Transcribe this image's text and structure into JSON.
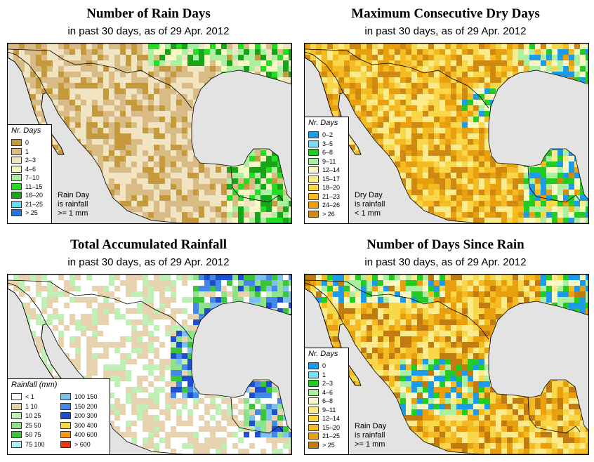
{
  "panels": [
    {
      "title": "Number of Rain Days",
      "subtitle": "in past 30 days, as of  29 Apr. 2012",
      "scheme": "raindays",
      "legend": {
        "title": "Nr. Days",
        "items": [
          {
            "label": "0",
            "color": "#c49a3c"
          },
          {
            "label": "1",
            "color": "#d9bb85"
          },
          {
            "label": "2–3",
            "color": "#f1e4c2"
          },
          {
            "label": "4–6",
            "color": "#f8f8c4"
          },
          {
            "label": "7–10",
            "color": "#aaf0a0"
          },
          {
            "label": "11–15",
            "color": "#22dd22"
          },
          {
            "label": "16–20",
            "color": "#19a519"
          },
          {
            "label": "21–25",
            "color": "#66ddf0"
          },
          {
            "label": "> 25",
            "color": "#2277dd"
          }
        ]
      },
      "note": [
        "Rain Day",
        "is rainfall",
        ">= 1 mm"
      ]
    },
    {
      "title": "Maximum Consecutive Dry Days",
      "subtitle": "in past 30 days, as of  29 Apr. 2012",
      "scheme": "drydays",
      "legend": {
        "title": "Nr. Days",
        "items": [
          {
            "label": "0–2",
            "color": "#1e9be6"
          },
          {
            "label": "3–5",
            "color": "#7adcf5"
          },
          {
            "label": "6–8",
            "color": "#22cc22"
          },
          {
            "label": "9–11",
            "color": "#aaf0a0"
          },
          {
            "label": "12–14",
            "color": "#f8f8c4"
          },
          {
            "label": "15–17",
            "color": "#fbeb8c"
          },
          {
            "label": "18–20",
            "color": "#f8d84a"
          },
          {
            "label": "21–23",
            "color": "#f5bb22"
          },
          {
            "label": "24–26",
            "color": "#e8a00e"
          },
          {
            "label": "> 26",
            "color": "#d08a12"
          }
        ]
      },
      "note": [
        "Dry Day",
        "is rainfall",
        "< 1 mm"
      ]
    },
    {
      "title": "Total Accumulated Rainfall",
      "subtitle": "in past 30 days, as of  29 Apr. 2012",
      "scheme": "rainfall",
      "legend": {
        "title": "Rainfall (mm)",
        "left": [
          {
            "label": "< 1",
            "color": "#ffffff"
          },
          {
            "label": "1    10",
            "color": "#e8d3b0"
          },
          {
            "label": "10    25",
            "color": "#bff0b5"
          },
          {
            "label": "25    50",
            "color": "#8ee28a"
          },
          {
            "label": "50    75",
            "color": "#3cc43c"
          },
          {
            "label": "75    100",
            "color": "#aaf0f5"
          }
        ],
        "right": [
          {
            "label": "100    150",
            "color": "#7cc0f0"
          },
          {
            "label": "150    200",
            "color": "#4488e8"
          },
          {
            "label": "200    300",
            "color": "#1f4fcf"
          },
          {
            "label": "300    400",
            "color": "#f8d84a"
          },
          {
            "label": "400    600",
            "color": "#f59a16"
          },
          {
            "label": "> 600",
            "color": "#ee3311"
          }
        ]
      },
      "note": []
    },
    {
      "title": "Number of Days Since Rain",
      "subtitle": "in past 30 days, as of  29 Apr. 2012",
      "scheme": "since",
      "legend": {
        "title": "Nr. Days",
        "items": [
          {
            "label": "0",
            "color": "#1e9be6"
          },
          {
            "label": "1",
            "color": "#7adcf5"
          },
          {
            "label": "2–3",
            "color": "#22cc22"
          },
          {
            "label": "4–6",
            "color": "#aaf0a0"
          },
          {
            "label": "6–8",
            "color": "#f8f8c4"
          },
          {
            "label": "9–11",
            "color": "#fbeb8c"
          },
          {
            "label": "12–14",
            "color": "#f8d84a"
          },
          {
            "label": "15–20",
            "color": "#f5bb22"
          },
          {
            "label": "21–25",
            "color": "#e8a00e"
          },
          {
            "label": "> 25",
            "color": "#c07c10"
          }
        ]
      },
      "note": [
        "Rain Day",
        "is rainfall",
        ">= 1 mm"
      ]
    }
  ],
  "map_colors": {
    "ocean": "#e3e3e3",
    "border": "#000000"
  }
}
